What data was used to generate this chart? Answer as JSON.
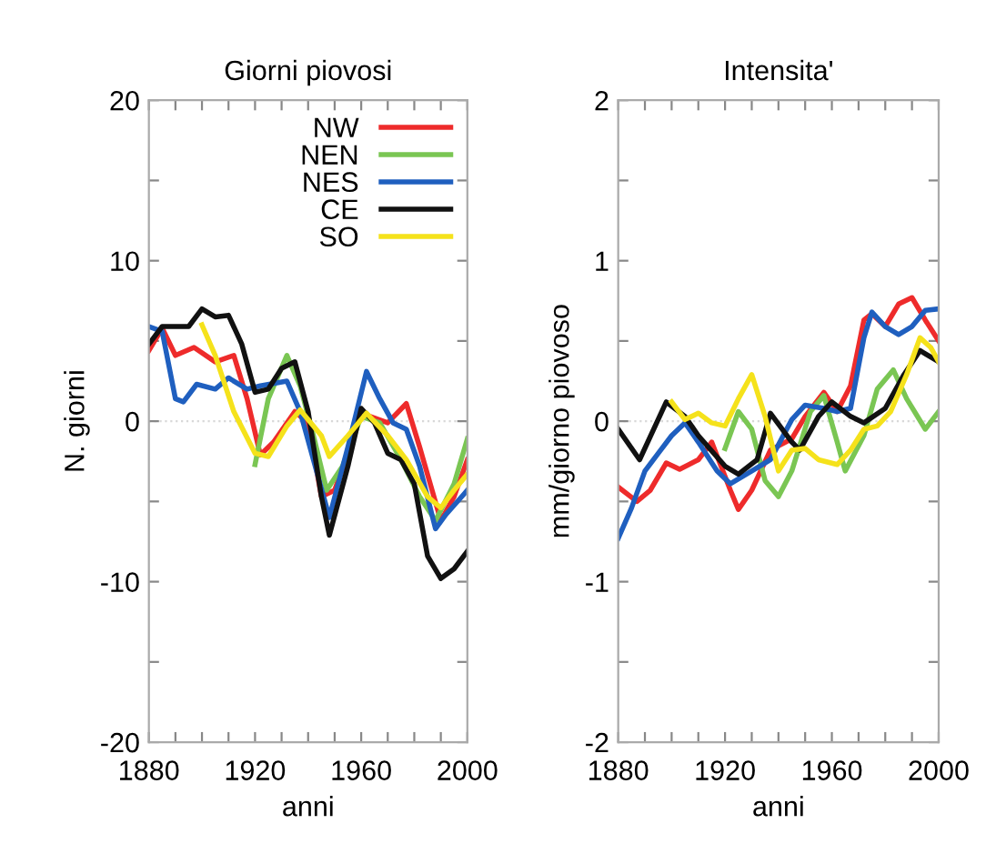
{
  "chart_data": [
    {
      "type": "line",
      "title": "Giorni piovosi",
      "xlabel": "anni",
      "ylabel": "N. giorni",
      "xlim": [
        1880,
        2000
      ],
      "ylim": [
        -20,
        20
      ],
      "xticks": [
        1880,
        {
          "value": 1890,
          "label": null
        },
        {
          "value": 1900,
          "label": null
        },
        {
          "value": 1910,
          "label": null
        },
        1920,
        {
          "value": 1930,
          "label": null
        },
        {
          "value": 1940,
          "label": null
        },
        {
          "value": 1950,
          "label": null
        },
        1960,
        {
          "value": 1970,
          "label": null
        },
        {
          "value": 1980,
          "label": null
        },
        {
          "value": 1990,
          "label": null
        },
        2000
      ],
      "yticks": [
        -20,
        {
          "value": -15,
          "label": null
        },
        -10,
        {
          "value": -5,
          "label": null
        },
        0,
        {
          "value": 5,
          "label": null
        },
        10,
        {
          "value": 15,
          "label": null
        },
        20
      ],
      "legend": "top right",
      "grid": false,
      "line_style": "solid",
      "marker": "none",
      "ref_lines": [
        {
          "axis": "y",
          "value": 0,
          "color": "#d8d8d8",
          "line_style": "dotted"
        }
      ],
      "series": [
        {
          "name": "NW",
          "color": "#ee2b2b",
          "x": [
            1880,
            1885,
            1890,
            1897,
            1905,
            1912,
            1917,
            1922,
            1927,
            1935,
            1940,
            1945,
            1950,
            1955,
            1960,
            1970,
            1977,
            1982,
            1990,
            1995,
            2000
          ],
          "values": [
            4.4,
            5.8,
            4.1,
            4.6,
            3.7,
            4.1,
            1.4,
            -2.1,
            -1.3,
            0.6,
            -0.1,
            -4.7,
            -4.3,
            -2.0,
            0.5,
            -0.1,
            1.1,
            -1.6,
            -6.2,
            -4.7,
            -2.4
          ]
        },
        {
          "name": "NEN",
          "color": "#7ac653",
          "x": [
            1920,
            1925,
            1932,
            1937,
            1942,
            1947,
            1953,
            1960,
            1967,
            1975,
            1982,
            1988,
            1995,
            2000
          ],
          "values": [
            -2.7,
            1.4,
            4.1,
            2.2,
            -0.9,
            -4.3,
            -2.8,
            0.3,
            -0.1,
            -2.4,
            -4.7,
            -6.2,
            -3.9,
            -1.1
          ]
        },
        {
          "name": "NES",
          "color": "#1f5fbf",
          "x": [
            1880,
            1885,
            1890,
            1893,
            1898,
            1905,
            1910,
            1917,
            1922,
            1932,
            1937,
            1942,
            1948,
            1955,
            1962,
            1967,
            1972,
            1977,
            1982,
            1988,
            1992,
            2000
          ],
          "values": [
            5.9,
            5.6,
            1.4,
            1.2,
            2.3,
            2.0,
            2.7,
            2.0,
            2.2,
            2.5,
            0.6,
            -2.4,
            -6.0,
            -1.6,
            3.1,
            1.4,
            -0.1,
            -0.5,
            -2.8,
            -6.7,
            -5.8,
            -4.3
          ]
        },
        {
          "name": "CE",
          "color": "#111111",
          "x": [
            1880,
            1885,
            1895,
            1900,
            1905,
            1910,
            1915,
            1920,
            1925,
            1930,
            1935,
            1940,
            1945,
            1948,
            1955,
            1960,
            1965,
            1970,
            1975,
            1980,
            1985,
            1990,
            1995,
            2000
          ],
          "values": [
            4.8,
            5.9,
            5.9,
            7.0,
            6.5,
            6.6,
            4.8,
            1.8,
            2.0,
            3.3,
            3.7,
            0.6,
            -4.7,
            -7.1,
            -2.8,
            0.8,
            -0.1,
            -2.0,
            -2.4,
            -3.9,
            -8.4,
            -9.8,
            -9.2,
            -8.1
          ]
        },
        {
          "name": "SO",
          "color": "#f5e21b",
          "x": [
            1900,
            1905,
            1912,
            1920,
            1925,
            1932,
            1937,
            1945,
            1948,
            1955,
            1962,
            1970,
            1977,
            1985,
            1990,
            1995,
            2000
          ],
          "values": [
            6.0,
            4.1,
            0.6,
            -2.0,
            -2.2,
            -0.3,
            0.7,
            -0.9,
            -2.2,
            -0.9,
            0.5,
            -0.9,
            -2.4,
            -4.7,
            -5.4,
            -4.3,
            -3.3
          ]
        }
      ]
    },
    {
      "type": "line",
      "title": "Intensita'",
      "xlabel": "anni",
      "ylabel": "mm/giorno piovoso",
      "xlim": [
        1880,
        2000
      ],
      "ylim": [
        -2,
        2
      ],
      "xticks": [
        1880,
        {
          "value": 1890,
          "label": null
        },
        {
          "value": 1900,
          "label": null
        },
        {
          "value": 1910,
          "label": null
        },
        1920,
        {
          "value": 1930,
          "label": null
        },
        {
          "value": 1940,
          "label": null
        },
        {
          "value": 1950,
          "label": null
        },
        1960,
        {
          "value": 1970,
          "label": null
        },
        {
          "value": 1980,
          "label": null
        },
        {
          "value": 1990,
          "label": null
        },
        2000
      ],
      "yticks": [
        -2,
        {
          "value": -1.5,
          "label": null
        },
        -1,
        {
          "value": -0.5,
          "label": null
        },
        0,
        {
          "value": 0.5,
          "label": null
        },
        1,
        {
          "value": 1.5,
          "label": null
        },
        2
      ],
      "legend": false,
      "grid": false,
      "line_style": "solid",
      "marker": "none",
      "ref_lines": [
        {
          "axis": "y",
          "value": 0,
          "color": "#d8d8d8",
          "line_style": "dotted"
        }
      ],
      "series": [
        {
          "color": "#ee2b2b",
          "x": [
            1880,
            1887,
            1892,
            1898,
            1903,
            1910,
            1915,
            1922,
            1925,
            1930,
            1937,
            1945,
            1950,
            1957,
            1962,
            1967,
            1972,
            1975,
            1980,
            1985,
            1990,
            1995,
            2000
          ],
          "values": [
            -0.41,
            -0.5,
            -0.43,
            -0.26,
            -0.3,
            -0.24,
            -0.13,
            -0.43,
            -0.55,
            -0.43,
            -0.18,
            -0.11,
            0.03,
            0.18,
            0.06,
            0.22,
            0.63,
            0.67,
            0.59,
            0.73,
            0.77,
            0.63,
            0.5
          ]
        },
        {
          "color": "#7ac653",
          "x": [
            1920,
            1925,
            1930,
            1935,
            1940,
            1945,
            1952,
            1957,
            1962,
            1965,
            1972,
            1977,
            1983,
            1988,
            1995,
            2000
          ],
          "values": [
            -0.17,
            0.06,
            -0.05,
            -0.37,
            -0.47,
            -0.31,
            0.06,
            0.16,
            -0.13,
            -0.31,
            -0.09,
            0.2,
            0.32,
            0.14,
            -0.05,
            0.06
          ]
        },
        {
          "color": "#1f5fbf",
          "x": [
            1880,
            1885,
            1890,
            1895,
            1900,
            1905,
            1910,
            1917,
            1922,
            1930,
            1937,
            1945,
            1950,
            1957,
            1962,
            1967,
            1972,
            1975,
            1980,
            1985,
            1990,
            1995,
            2000
          ],
          "values": [
            -0.73,
            -0.54,
            -0.31,
            -0.2,
            -0.09,
            -0.01,
            -0.13,
            -0.31,
            -0.39,
            -0.31,
            -0.24,
            0.01,
            0.1,
            0.08,
            0.06,
            0.08,
            0.52,
            0.68,
            0.59,
            0.54,
            0.59,
            0.69,
            0.7
          ]
        },
        {
          "color": "#111111",
          "x": [
            1880,
            1888,
            1898,
            1905,
            1910,
            1920,
            1925,
            1932,
            1937,
            1945,
            1948,
            1955,
            1960,
            1967,
            1972,
            1980,
            1987,
            1993,
            2000
          ],
          "values": [
            -0.05,
            -0.24,
            0.12,
            0.03,
            -0.09,
            -0.28,
            -0.33,
            -0.24,
            0.05,
            -0.13,
            -0.18,
            0.03,
            0.12,
            0.03,
            -0.01,
            0.08,
            0.29,
            0.44,
            0.37
          ]
        },
        {
          "color": "#f5e21b",
          "x": [
            1900,
            1905,
            1910,
            1915,
            1920,
            1925,
            1930,
            1935,
            1940,
            1945,
            1950,
            1955,
            1962,
            1967,
            1972,
            1977,
            1982,
            1988,
            1993,
            1997,
            2000
          ],
          "values": [
            0.12,
            0.01,
            0.05,
            -0.01,
            -0.03,
            0.14,
            0.29,
            0.03,
            -0.31,
            -0.18,
            -0.17,
            -0.24,
            -0.27,
            -0.18,
            -0.05,
            -0.03,
            0.06,
            0.29,
            0.52,
            0.46,
            0.37
          ]
        }
      ]
    }
  ]
}
